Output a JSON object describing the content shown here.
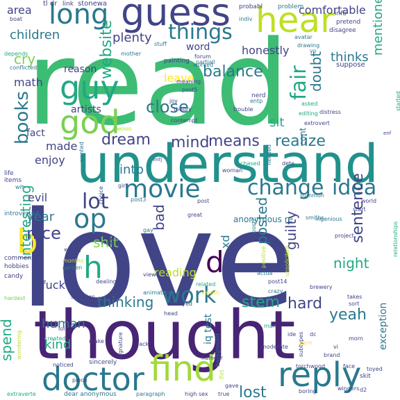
{
  "colors": {
    "background": "#ffffff",
    "palette": [
      "#fde725",
      "#b5de2b",
      "#6ece58",
      "#35b779",
      "#1f9e89",
      "#26828e",
      "#31688e",
      "#3e4989",
      "#482878",
      "#440154"
    ]
  },
  "words": [
    {
      "text": "read",
      "color": "#3dbc74"
    },
    {
      "text": "love",
      "color": "#414487"
    },
    {
      "text": "thought",
      "color": "#482475"
    },
    {
      "text": "understand",
      "color": "#21918c"
    },
    {
      "text": "guess",
      "color": "#414487"
    },
    {
      "text": "hear",
      "color": "#bddf26"
    },
    {
      "text": "long",
      "color": "#2a788e"
    },
    {
      "text": "god",
      "color": "#7ad151"
    },
    {
      "text": "guy",
      "color": "#22a884"
    },
    {
      "text": "find",
      "color": "#a0da39"
    },
    {
      "text": "doctor",
      "color": "#2a788e"
    },
    {
      "text": "reply",
      "color": "#2a788e"
    },
    {
      "text": "movie",
      "color": "#2a788e"
    },
    {
      "text": "change",
      "color": "#2a788e"
    },
    {
      "text": "idea",
      "color": "#2a788e"
    },
    {
      "text": "things",
      "color": "#2a788e"
    },
    {
      "text": "op",
      "color": "#2a788e"
    },
    {
      "text": "b",
      "color": "#fde725"
    },
    {
      "text": "h",
      "color": "#22a884"
    },
    {
      "text": "d",
      "color": "#440154"
    },
    {
      "text": "books",
      "color": "#2a788e"
    },
    {
      "text": "website",
      "color": "#22a884"
    },
    {
      "text": "fair",
      "color": "#22a884"
    },
    {
      "text": "lot",
      "color": "#414487"
    },
    {
      "text": "work",
      "color": "#2a788e"
    },
    {
      "text": "close",
      "color": "#2a788e"
    },
    {
      "text": "dream",
      "color": "#414487"
    },
    {
      "text": "mind",
      "color": "#414487"
    },
    {
      "text": "means",
      "color": "#414487"
    },
    {
      "text": "realize",
      "color": "#2a788e"
    },
    {
      "text": "balance",
      "color": "#2a788e"
    },
    {
      "text": "doubt",
      "color": "#2a788e"
    },
    {
      "text": "children",
      "color": "#2a788e"
    },
    {
      "text": "plenty",
      "color": "#414487"
    },
    {
      "text": "thinks",
      "color": "#2a788e"
    },
    {
      "text": "honestly",
      "color": "#414487"
    },
    {
      "text": "comfortable",
      "color": "#414487"
    },
    {
      "text": "mentioned",
      "color": "#22a884"
    },
    {
      "text": "sentence",
      "color": "#414487"
    },
    {
      "text": "guilty",
      "color": "#414487"
    },
    {
      "text": "night",
      "color": "#22a884"
    },
    {
      "text": "yeah",
      "color": "#2a788e"
    },
    {
      "text": "hard",
      "color": "#414487"
    },
    {
      "text": "lost",
      "color": "#2a788e"
    },
    {
      "text": "stem",
      "color": "#22a884"
    },
    {
      "text": "posted",
      "color": "#2a788e"
    },
    {
      "text": "thinking",
      "color": "#2a788e"
    },
    {
      "text": "nice",
      "color": "#414487"
    },
    {
      "text": "year",
      "color": "#2a788e"
    },
    {
      "text": "interesting",
      "color": "#22a884"
    },
    {
      "text": "shit",
      "color": "#7ad151"
    },
    {
      "text": "bad",
      "color": "#414487"
    },
    {
      "text": "made",
      "color": "#414487"
    },
    {
      "text": "enjoy",
      "color": "#414487"
    },
    {
      "text": "intp",
      "color": "#2a788e"
    },
    {
      "text": "kind",
      "color": "#22a884"
    },
    {
      "text": "human",
      "color": "#2a788e"
    },
    {
      "text": "spend",
      "color": "#22a884"
    },
    {
      "text": "cry",
      "color": "#7ad151"
    },
    {
      "text": "math",
      "color": "#414487"
    },
    {
      "text": "area",
      "color": "#414487"
    },
    {
      "text": "fact",
      "color": "#414487"
    },
    {
      "text": "sit",
      "color": "#22a884"
    },
    {
      "text": "reason",
      "color": "#414487"
    },
    {
      "text": "artists",
      "color": "#414487"
    },
    {
      "text": "evil",
      "color": "#414487"
    },
    {
      "text": "leave",
      "color": "#fde725"
    },
    {
      "text": "xd",
      "color": "#2a788e"
    },
    {
      "text": "fuck",
      "color": "#414487"
    },
    {
      "text": "reading",
      "color": "#bddf26"
    },
    {
      "text": "iq test",
      "color": "#2a788e"
    },
    {
      "text": "exception",
      "color": "#2a788e"
    },
    {
      "text": "word",
      "color": "#414487"
    },
    {
      "text": "cont",
      "color": "#2a788e"
    },
    {
      "text": "anonymous re",
      "color": "#2a788e"
    },
    {
      "text": "stonewa",
      "color": "#414487"
    },
    {
      "text": "probabl",
      "color": "#414487"
    },
    {
      "text": "problem",
      "color": "#2a788e"
    },
    {
      "text": "info",
      "color": "#414487"
    },
    {
      "text": "indiv",
      "color": "#2a788e"
    },
    {
      "text": "pretend",
      "color": "#414487"
    },
    {
      "text": "disagree",
      "color": "#414487"
    },
    {
      "text": "avatar",
      "color": "#2a788e"
    },
    {
      "text": "drawing",
      "color": "#2a788e"
    },
    {
      "text": "yo",
      "color": "#2a788e"
    },
    {
      "text": "tl dr",
      "color": "#414487"
    },
    {
      "text": "link",
      "color": "#414487"
    },
    {
      "text": "boat",
      "color": "#414487"
    },
    {
      "text": "stuff",
      "color": "#2a788e"
    },
    {
      "text": "painting",
      "color": "#414487"
    },
    {
      "text": "mother",
      "color": "#2a788e"
    },
    {
      "text": "forum",
      "color": "#414487"
    },
    {
      "text": "worked",
      "color": "#2a788e"
    },
    {
      "text": "partiall",
      "color": "#2a788e"
    },
    {
      "text": "depends",
      "color": "#22a884"
    },
    {
      "text": "conflicted",
      "color": "#2a788e"
    },
    {
      "text": "suppose",
      "color": "#414487"
    },
    {
      "text": "meaning",
      "color": "#414487"
    },
    {
      "text": "post5",
      "color": "#414487"
    },
    {
      "text": "nerd",
      "color": "#414487"
    },
    {
      "text": "joy",
      "color": "#414487"
    },
    {
      "text": "theory",
      "color": "#414487"
    },
    {
      "text": "contempt",
      "color": "#414487"
    },
    {
      "text": "trouble",
      "color": "#414487"
    },
    {
      "text": "entp",
      "color": "#2a788e"
    },
    {
      "text": "summon",
      "color": "#2a788e"
    },
    {
      "text": "asked",
      "color": "#22a884"
    },
    {
      "text": "editing",
      "color": "#22a884"
    },
    {
      "text": "started",
      "color": "#22a884"
    },
    {
      "text": "distress",
      "color": "#414487"
    },
    {
      "text": "extrovert",
      "color": "#414487"
    },
    {
      "text": "chased",
      "color": "#22a884"
    },
    {
      "text": "needed",
      "color": "#2a788e"
    },
    {
      "text": "dete",
      "color": "#414487"
    },
    {
      "text": "woman",
      "color": "#414487"
    },
    {
      "text": "enfj",
      "color": "#414487"
    },
    {
      "text": "enf",
      "color": "#414487"
    },
    {
      "text": "wooo",
      "color": "#bddf26"
    },
    {
      "text": "wanted",
      "color": "#2a788e"
    },
    {
      "text": "life",
      "color": "#414487"
    },
    {
      "text": "items",
      "color": "#414487"
    },
    {
      "text": "wit",
      "color": "#2a788e"
    },
    {
      "text": "introverted",
      "color": "#2a788e"
    },
    {
      "text": "comments",
      "color": "#414487"
    },
    {
      "text": "hobbies",
      "color": "#414487"
    },
    {
      "text": "candy",
      "color": "#414487"
    },
    {
      "text": "choice",
      "color": "#414487"
    },
    {
      "text": "girl",
      "color": "#414487"
    },
    {
      "text": "post3",
      "color": "#2a788e"
    },
    {
      "text": "gay",
      "color": "#2a788e"
    },
    {
      "text": "mi6",
      "color": "#414487"
    },
    {
      "text": "wrong",
      "color": "#414487"
    },
    {
      "text": "months",
      "color": "#bddf26"
    },
    {
      "text": "garden",
      "color": "#2a788e"
    },
    {
      "text": "dealing",
      "color": "#414487"
    },
    {
      "text": "view",
      "color": "#414487"
    },
    {
      "text": "great",
      "color": "#414487"
    },
    {
      "text": "post",
      "color": "#414487"
    },
    {
      "text": "post2",
      "color": "#2a788e"
    },
    {
      "text": "smiths",
      "color": "#2a788e"
    },
    {
      "text": "ingenious",
      "color": "#2a788e"
    },
    {
      "text": "world",
      "color": "#414487"
    },
    {
      "text": "start",
      "color": "#414487"
    },
    {
      "text": "relationships",
      "color": "#22a884"
    },
    {
      "text": "project",
      "color": "#414487"
    },
    {
      "text": "actua",
      "color": "#2a788e"
    },
    {
      "text": "positive",
      "color": "#bddf26"
    },
    {
      "text": "post14",
      "color": "#414487"
    },
    {
      "text": "brewery",
      "color": "#414487"
    },
    {
      "text": "unsolicited",
      "color": "#bddf26"
    },
    {
      "text": "crazy",
      "color": "#2a788e"
    },
    {
      "text": "takes",
      "color": "#414487"
    },
    {
      "text": "sort",
      "color": "#414487"
    },
    {
      "text": "morn",
      "color": "#414487"
    },
    {
      "text": "skit",
      "color": "#414487"
    },
    {
      "text": "related",
      "color": "#22a884"
    },
    {
      "text": "vanish",
      "color": "#fde725"
    },
    {
      "text": "stayed",
      "color": "#414487"
    },
    {
      "text": "head",
      "color": "#414487"
    },
    {
      "text": "animation",
      "color": "#2a788e"
    },
    {
      "text": "situation",
      "color": "#414487"
    },
    {
      "text": "hardest",
      "color": "#7ad151"
    },
    {
      "text": "lol",
      "color": "#414487"
    },
    {
      "text": "created",
      "color": "#22a884"
    },
    {
      "text": "wondering",
      "color": "#bddf26"
    },
    {
      "text": "noticed",
      "color": "#414487"
    },
    {
      "text": "make",
      "color": "#414487"
    },
    {
      "text": "signature",
      "color": "#414487"
    },
    {
      "text": "lack",
      "color": "#414487"
    },
    {
      "text": "man",
      "color": "#22a884"
    },
    {
      "text": "ide",
      "color": "#414487"
    },
    {
      "text": "dc",
      "color": "#414487"
    },
    {
      "text": "vi",
      "color": "#414487"
    },
    {
      "text": "background",
      "color": "#2a788e"
    },
    {
      "text": "moderate",
      "color": "#414487"
    },
    {
      "text": "subtypes",
      "color": "#414487"
    },
    {
      "text": "brand",
      "color": "#414487"
    },
    {
      "text": "gym",
      "color": "#fde725"
    },
    {
      "text": "sincerely",
      "color": "#414487"
    },
    {
      "text": "humour",
      "color": "#414487"
    },
    {
      "text": "torchwood",
      "color": "#414487"
    },
    {
      "text": "face",
      "color": "#414487"
    },
    {
      "text": "toyed",
      "color": "#414487"
    },
    {
      "text": "piece",
      "color": "#414487"
    },
    {
      "text": "flirt",
      "color": "#bddf26"
    },
    {
      "text": "gave",
      "color": "#414487"
    },
    {
      "text": "boring",
      "color": "#414487"
    },
    {
      "text": "extraverte",
      "color": "#22a884"
    },
    {
      "text": "dear anonymous",
      "color": "#2a788e"
    },
    {
      "text": "paragraph",
      "color": "#2a788e"
    },
    {
      "text": "high sex",
      "color": "#414487"
    },
    {
      "text": "true",
      "color": "#414487"
    },
    {
      "text": "wingers",
      "color": "#414487"
    },
    {
      "text": "d2",
      "color": "#414487"
    }
  ]
}
